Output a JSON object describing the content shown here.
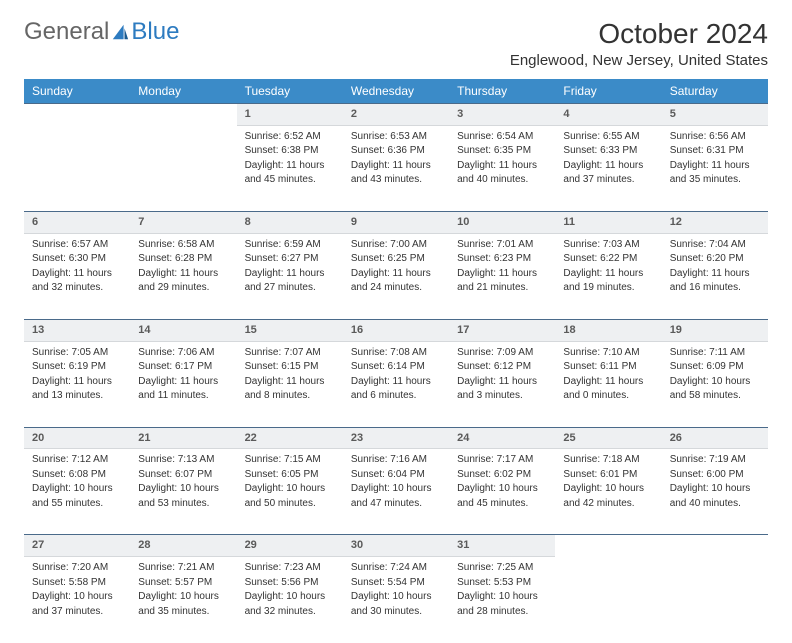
{
  "logo": {
    "general": "General",
    "blue": "Blue"
  },
  "title": "October 2024",
  "location": "Englewood, New Jersey, United States",
  "day_headers": [
    "Sunday",
    "Monday",
    "Tuesday",
    "Wednesday",
    "Thursday",
    "Friday",
    "Saturday"
  ],
  "header_bg": "#3b8bc8",
  "header_fg": "#ffffff",
  "daynum_bg": "#eef0f2",
  "daynum_border_top": "#4a6a8a",
  "weeks": [
    [
      null,
      null,
      {
        "n": "1",
        "sr": "Sunrise: 6:52 AM",
        "ss": "Sunset: 6:38 PM",
        "dl1": "Daylight: 11 hours",
        "dl2": "and 45 minutes."
      },
      {
        "n": "2",
        "sr": "Sunrise: 6:53 AM",
        "ss": "Sunset: 6:36 PM",
        "dl1": "Daylight: 11 hours",
        "dl2": "and 43 minutes."
      },
      {
        "n": "3",
        "sr": "Sunrise: 6:54 AM",
        "ss": "Sunset: 6:35 PM",
        "dl1": "Daylight: 11 hours",
        "dl2": "and 40 minutes."
      },
      {
        "n": "4",
        "sr": "Sunrise: 6:55 AM",
        "ss": "Sunset: 6:33 PM",
        "dl1": "Daylight: 11 hours",
        "dl2": "and 37 minutes."
      },
      {
        "n": "5",
        "sr": "Sunrise: 6:56 AM",
        "ss": "Sunset: 6:31 PM",
        "dl1": "Daylight: 11 hours",
        "dl2": "and 35 minutes."
      }
    ],
    [
      {
        "n": "6",
        "sr": "Sunrise: 6:57 AM",
        "ss": "Sunset: 6:30 PM",
        "dl1": "Daylight: 11 hours",
        "dl2": "and 32 minutes."
      },
      {
        "n": "7",
        "sr": "Sunrise: 6:58 AM",
        "ss": "Sunset: 6:28 PM",
        "dl1": "Daylight: 11 hours",
        "dl2": "and 29 minutes."
      },
      {
        "n": "8",
        "sr": "Sunrise: 6:59 AM",
        "ss": "Sunset: 6:27 PM",
        "dl1": "Daylight: 11 hours",
        "dl2": "and 27 minutes."
      },
      {
        "n": "9",
        "sr": "Sunrise: 7:00 AM",
        "ss": "Sunset: 6:25 PM",
        "dl1": "Daylight: 11 hours",
        "dl2": "and 24 minutes."
      },
      {
        "n": "10",
        "sr": "Sunrise: 7:01 AM",
        "ss": "Sunset: 6:23 PM",
        "dl1": "Daylight: 11 hours",
        "dl2": "and 21 minutes."
      },
      {
        "n": "11",
        "sr": "Sunrise: 7:03 AM",
        "ss": "Sunset: 6:22 PM",
        "dl1": "Daylight: 11 hours",
        "dl2": "and 19 minutes."
      },
      {
        "n": "12",
        "sr": "Sunrise: 7:04 AM",
        "ss": "Sunset: 6:20 PM",
        "dl1": "Daylight: 11 hours",
        "dl2": "and 16 minutes."
      }
    ],
    [
      {
        "n": "13",
        "sr": "Sunrise: 7:05 AM",
        "ss": "Sunset: 6:19 PM",
        "dl1": "Daylight: 11 hours",
        "dl2": "and 13 minutes."
      },
      {
        "n": "14",
        "sr": "Sunrise: 7:06 AM",
        "ss": "Sunset: 6:17 PM",
        "dl1": "Daylight: 11 hours",
        "dl2": "and 11 minutes."
      },
      {
        "n": "15",
        "sr": "Sunrise: 7:07 AM",
        "ss": "Sunset: 6:15 PM",
        "dl1": "Daylight: 11 hours",
        "dl2": "and 8 minutes."
      },
      {
        "n": "16",
        "sr": "Sunrise: 7:08 AM",
        "ss": "Sunset: 6:14 PM",
        "dl1": "Daylight: 11 hours",
        "dl2": "and 6 minutes."
      },
      {
        "n": "17",
        "sr": "Sunrise: 7:09 AM",
        "ss": "Sunset: 6:12 PM",
        "dl1": "Daylight: 11 hours",
        "dl2": "and 3 minutes."
      },
      {
        "n": "18",
        "sr": "Sunrise: 7:10 AM",
        "ss": "Sunset: 6:11 PM",
        "dl1": "Daylight: 11 hours",
        "dl2": "and 0 minutes."
      },
      {
        "n": "19",
        "sr": "Sunrise: 7:11 AM",
        "ss": "Sunset: 6:09 PM",
        "dl1": "Daylight: 10 hours",
        "dl2": "and 58 minutes."
      }
    ],
    [
      {
        "n": "20",
        "sr": "Sunrise: 7:12 AM",
        "ss": "Sunset: 6:08 PM",
        "dl1": "Daylight: 10 hours",
        "dl2": "and 55 minutes."
      },
      {
        "n": "21",
        "sr": "Sunrise: 7:13 AM",
        "ss": "Sunset: 6:07 PM",
        "dl1": "Daylight: 10 hours",
        "dl2": "and 53 minutes."
      },
      {
        "n": "22",
        "sr": "Sunrise: 7:15 AM",
        "ss": "Sunset: 6:05 PM",
        "dl1": "Daylight: 10 hours",
        "dl2": "and 50 minutes."
      },
      {
        "n": "23",
        "sr": "Sunrise: 7:16 AM",
        "ss": "Sunset: 6:04 PM",
        "dl1": "Daylight: 10 hours",
        "dl2": "and 47 minutes."
      },
      {
        "n": "24",
        "sr": "Sunrise: 7:17 AM",
        "ss": "Sunset: 6:02 PM",
        "dl1": "Daylight: 10 hours",
        "dl2": "and 45 minutes."
      },
      {
        "n": "25",
        "sr": "Sunrise: 7:18 AM",
        "ss": "Sunset: 6:01 PM",
        "dl1": "Daylight: 10 hours",
        "dl2": "and 42 minutes."
      },
      {
        "n": "26",
        "sr": "Sunrise: 7:19 AM",
        "ss": "Sunset: 6:00 PM",
        "dl1": "Daylight: 10 hours",
        "dl2": "and 40 minutes."
      }
    ],
    [
      {
        "n": "27",
        "sr": "Sunrise: 7:20 AM",
        "ss": "Sunset: 5:58 PM",
        "dl1": "Daylight: 10 hours",
        "dl2": "and 37 minutes."
      },
      {
        "n": "28",
        "sr": "Sunrise: 7:21 AM",
        "ss": "Sunset: 5:57 PM",
        "dl1": "Daylight: 10 hours",
        "dl2": "and 35 minutes."
      },
      {
        "n": "29",
        "sr": "Sunrise: 7:23 AM",
        "ss": "Sunset: 5:56 PM",
        "dl1": "Daylight: 10 hours",
        "dl2": "and 32 minutes."
      },
      {
        "n": "30",
        "sr": "Sunrise: 7:24 AM",
        "ss": "Sunset: 5:54 PM",
        "dl1": "Daylight: 10 hours",
        "dl2": "and 30 minutes."
      },
      {
        "n": "31",
        "sr": "Sunrise: 7:25 AM",
        "ss": "Sunset: 5:53 PM",
        "dl1": "Daylight: 10 hours",
        "dl2": "and 28 minutes."
      },
      null,
      null
    ]
  ]
}
